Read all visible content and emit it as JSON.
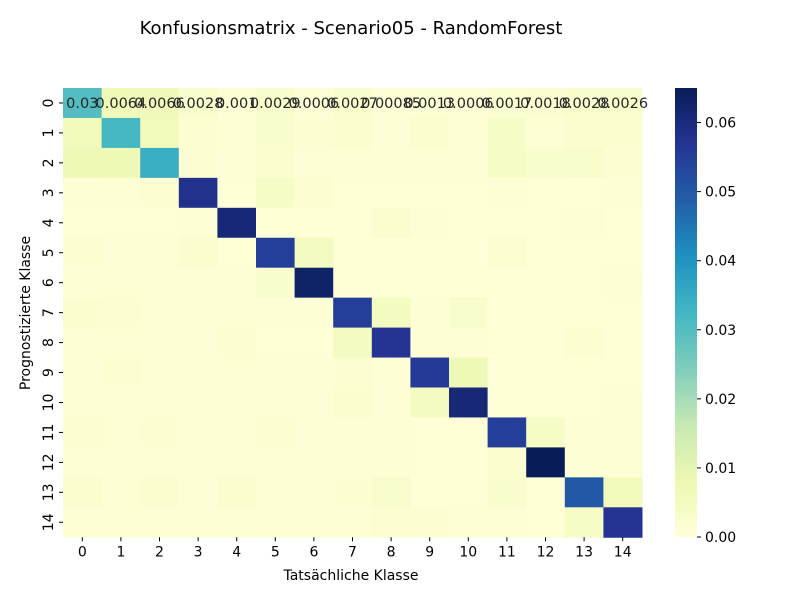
{
  "chart_data": {
    "type": "heatmap",
    "title": "Konfusionsmatrix - Scenario05 - RandomForest",
    "xlabel": "Tatsächliche Klasse",
    "ylabel": "Prognostizierte Klasse",
    "x_categories": [
      "0",
      "1",
      "2",
      "3",
      "4",
      "5",
      "6",
      "7",
      "8",
      "9",
      "10",
      "11",
      "12",
      "13",
      "14"
    ],
    "y_categories": [
      "0",
      "1",
      "2",
      "3",
      "4",
      "5",
      "6",
      "7",
      "8",
      "9",
      "10",
      "11",
      "12",
      "13",
      "14"
    ],
    "colorscale": "YlGnBu",
    "vmin": 0.0,
    "vmax": 0.065,
    "colorbar_ticks": [
      "0.00",
      "0.01",
      "0.02",
      "0.03",
      "0.04",
      "0.05",
      "0.06"
    ],
    "colorbar_tick_values": [
      0.0,
      0.01,
      0.02,
      0.03,
      0.04,
      0.05,
      0.06
    ],
    "first_row_annotations": [
      "0.03",
      "0.0064",
      "0.0066",
      "0.0028",
      "0.001",
      "0.0029",
      "0.0006",
      "0.0027",
      "0.00085",
      "0.0013",
      "0.0006",
      "0.0017",
      "0.0018",
      "0.0028",
      "0.0026"
    ],
    "values": [
      [
        0.03,
        0.0064,
        0.0066,
        0.0028,
        0.001,
        0.0029,
        0.0006,
        0.0027,
        0.00085,
        0.0013,
        0.0006,
        0.0017,
        0.0018,
        0.0028,
        0.0026
      ],
      [
        0.006,
        0.032,
        0.006,
        0.0015,
        0.001,
        0.0025,
        0.0015,
        0.002,
        0.0008,
        0.002,
        0.001,
        0.004,
        0.001,
        0.002,
        0.002
      ],
      [
        0.007,
        0.007,
        0.034,
        0.0015,
        0.0008,
        0.002,
        0.0006,
        0.001,
        0.0008,
        0.0008,
        0.0006,
        0.004,
        0.0025,
        0.003,
        0.0015
      ],
      [
        0.0008,
        0.001,
        0.0015,
        0.058,
        0.0004,
        0.004,
        0.0015,
        0.0005,
        0.0005,
        0.0005,
        0.0004,
        0.0008,
        0.0004,
        0.0004,
        0.001
      ],
      [
        0.0005,
        0.0005,
        0.0005,
        0.0008,
        0.061,
        0.0004,
        0.0004,
        0.0004,
        0.002,
        0.001,
        0.0004,
        0.0004,
        0.0004,
        0.0006,
        0.0004
      ],
      [
        0.0015,
        0.0008,
        0.0008,
        0.002,
        0.0004,
        0.055,
        0.005,
        0.0004,
        0.0004,
        0.0004,
        0.0004,
        0.0015,
        0.0004,
        0.0004,
        0.0004
      ],
      [
        0.0006,
        0.0006,
        0.0006,
        0.0008,
        0.0006,
        0.0025,
        0.063,
        0.0004,
        0.0004,
        0.0004,
        0.0004,
        0.0004,
        0.0004,
        0.0004,
        0.0006
      ],
      [
        0.002,
        0.0015,
        0.0008,
        0.0008,
        0.0006,
        0.0006,
        0.0008,
        0.055,
        0.005,
        0.001,
        0.003,
        0.0004,
        0.0004,
        0.0004,
        0.0004
      ],
      [
        0.0006,
        0.0006,
        0.0006,
        0.0006,
        0.0015,
        0.0004,
        0.0004,
        0.005,
        0.057,
        0.0006,
        0.0006,
        0.0004,
        0.0004,
        0.0015,
        0.0004
      ],
      [
        0.0008,
        0.0015,
        0.0008,
        0.0006,
        0.0008,
        0.0008,
        0.0006,
        0.0015,
        0.0008,
        0.056,
        0.007,
        0.0004,
        0.0004,
        0.0004,
        0.0004
      ],
      [
        0.0006,
        0.0008,
        0.0006,
        0.0006,
        0.0006,
        0.0006,
        0.0006,
        0.002,
        0.0006,
        0.005,
        0.061,
        0.0004,
        0.0004,
        0.0004,
        0.0006
      ],
      [
        0.0015,
        0.001,
        0.0015,
        0.0008,
        0.0006,
        0.0015,
        0.0006,
        0.0006,
        0.0006,
        0.0004,
        0.0004,
        0.055,
        0.004,
        0.0008,
        0.001
      ],
      [
        0.0008,
        0.0008,
        0.0008,
        0.0006,
        0.0006,
        0.0006,
        0.0006,
        0.0006,
        0.0006,
        0.0004,
        0.0004,
        0.002,
        0.065,
        0.0008,
        0.0008
      ],
      [
        0.002,
        0.001,
        0.002,
        0.0006,
        0.002,
        0.0006,
        0.0006,
        0.0015,
        0.003,
        0.0004,
        0.0004,
        0.0025,
        0.0004,
        0.05,
        0.006
      ],
      [
        0.0008,
        0.0008,
        0.0008,
        0.0008,
        0.001,
        0.0006,
        0.0006,
        0.0006,
        0.0015,
        0.0015,
        0.0006,
        0.0008,
        0.0004,
        0.004,
        0.057
      ]
    ]
  }
}
